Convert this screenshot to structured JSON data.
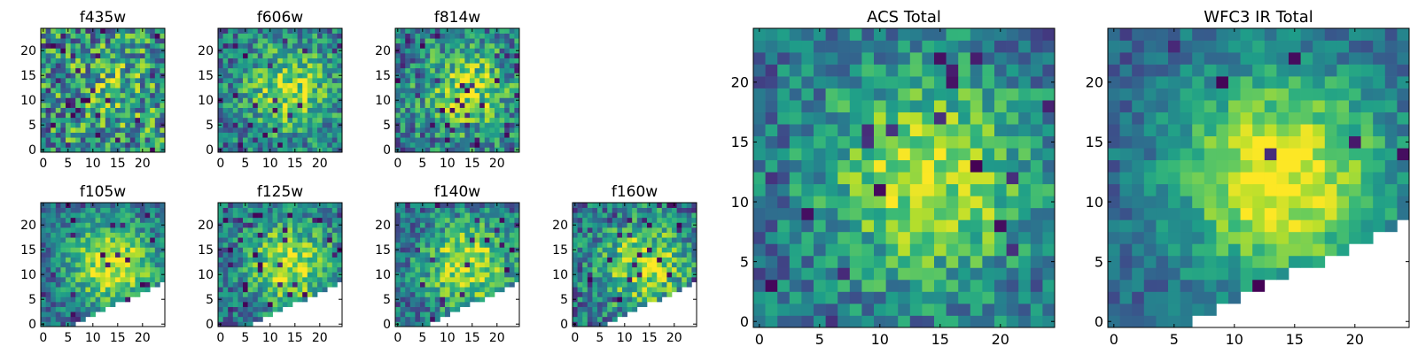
{
  "chart_data": [
    {
      "type": "heatmap",
      "title": "f435w",
      "xticks": [
        "0",
        "5",
        "10",
        "15",
        "20"
      ],
      "yticks": [
        "0",
        "5",
        "10",
        "15",
        "20"
      ],
      "xlim": [
        0,
        25
      ],
      "ylim": [
        0,
        25
      ],
      "colormap": "viridis",
      "seed": 11,
      "smooth": 0.15,
      "noise": 0.75,
      "dark_frac": 0.05,
      "mask": "none"
    },
    {
      "type": "heatmap",
      "title": "f606w",
      "xticks": [
        "0",
        "5",
        "10",
        "15",
        "20"
      ],
      "yticks": [
        "0",
        "5",
        "10",
        "15",
        "20"
      ],
      "xlim": [
        0,
        25
      ],
      "ylim": [
        0,
        25
      ],
      "colormap": "viridis",
      "seed": 23,
      "smooth": 0.45,
      "noise": 0.55,
      "dark_frac": 0.03,
      "mask": "none"
    },
    {
      "type": "heatmap",
      "title": "f814w",
      "xticks": [
        "0",
        "5",
        "10",
        "15",
        "20"
      ],
      "yticks": [
        "0",
        "5",
        "10",
        "15",
        "20"
      ],
      "xlim": [
        0,
        25
      ],
      "ylim": [
        0,
        25
      ],
      "colormap": "viridis",
      "seed": 37,
      "smooth": 0.45,
      "noise": 0.6,
      "dark_frac": 0.05,
      "mask": "none"
    },
    {
      "type": "heatmap",
      "title": "f105w",
      "xticks": [
        "0",
        "5",
        "10",
        "15",
        "20"
      ],
      "yticks": [
        "0",
        "5",
        "10",
        "15",
        "20"
      ],
      "xlim": [
        0,
        25
      ],
      "ylim": [
        0,
        25
      ],
      "colormap": "viridis",
      "seed": 41,
      "smooth": 0.6,
      "noise": 0.45,
      "dark_frac": 0.04,
      "mask": "corner"
    },
    {
      "type": "heatmap",
      "title": "f125w",
      "xticks": [
        "0",
        "5",
        "10",
        "15",
        "20"
      ],
      "yticks": [
        "0",
        "5",
        "10",
        "15",
        "20"
      ],
      "xlim": [
        0,
        25
      ],
      "ylim": [
        0,
        25
      ],
      "colormap": "viridis",
      "seed": 53,
      "smooth": 0.55,
      "noise": 0.5,
      "dark_frac": 0.06,
      "mask": "corner"
    },
    {
      "type": "heatmap",
      "title": "f140w",
      "xticks": [
        "0",
        "5",
        "10",
        "15",
        "20"
      ],
      "yticks": [
        "0",
        "5",
        "10",
        "15",
        "20"
      ],
      "xlim": [
        0,
        25
      ],
      "ylim": [
        0,
        25
      ],
      "colormap": "viridis",
      "seed": 67,
      "smooth": 0.55,
      "noise": 0.5,
      "dark_frac": 0.04,
      "mask": "corner"
    },
    {
      "type": "heatmap",
      "title": "f160w",
      "xticks": [
        "0",
        "5",
        "10",
        "15",
        "20"
      ],
      "yticks": [
        "0",
        "5",
        "10",
        "15",
        "20"
      ],
      "xlim": [
        0,
        25
      ],
      "ylim": [
        0,
        25
      ],
      "colormap": "viridis",
      "seed": 79,
      "smooth": 0.5,
      "noise": 0.55,
      "dark_frac": 0.06,
      "mask": "corner"
    },
    {
      "type": "heatmap",
      "title": "ACS Total",
      "xticks": [
        "0",
        "5",
        "10",
        "15",
        "20"
      ],
      "yticks": [
        "0",
        "5",
        "10",
        "15",
        "20"
      ],
      "xlim": [
        0,
        25
      ],
      "ylim": [
        0,
        25
      ],
      "colormap": "viridis",
      "seed": 97,
      "smooth": 0.55,
      "noise": 0.45,
      "dark_frac": 0.03,
      "mask": "none"
    },
    {
      "type": "heatmap",
      "title": "WFC3 IR Total",
      "xticks": [
        "0",
        "5",
        "10",
        "15",
        "20"
      ],
      "yticks": [
        "0",
        "5",
        "10",
        "15",
        "20"
      ],
      "xlim": [
        0,
        25
      ],
      "ylim": [
        0,
        25
      ],
      "colormap": "viridis",
      "seed": 113,
      "smooth": 0.7,
      "noise": 0.3,
      "dark_frac": 0.02,
      "mask": "corner"
    }
  ]
}
